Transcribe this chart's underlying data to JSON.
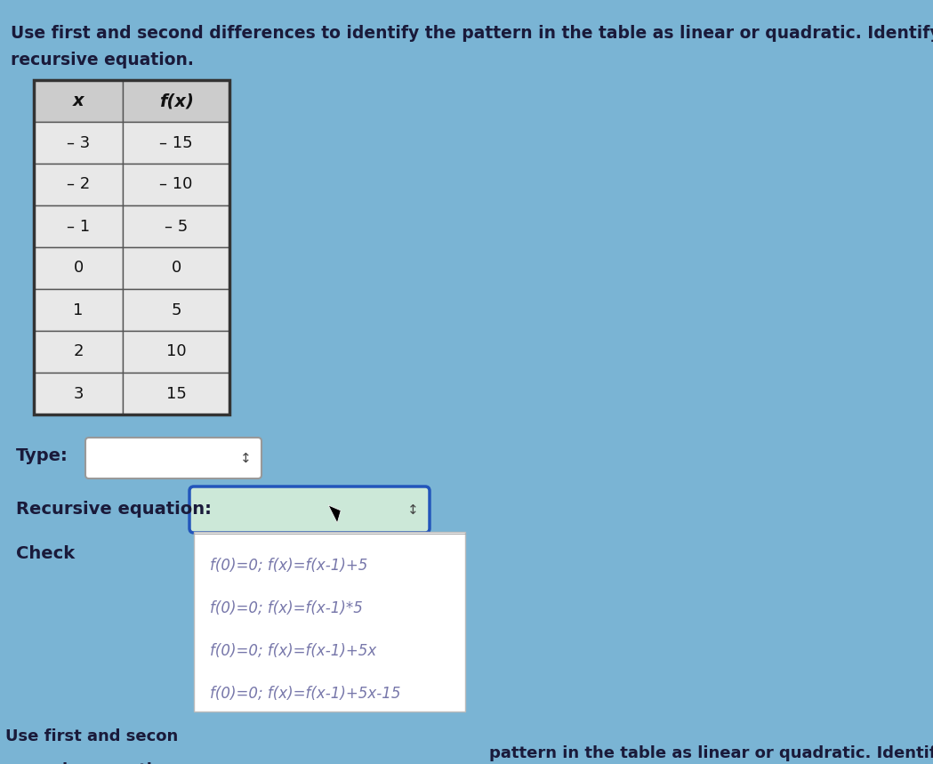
{
  "title_line1": "Use first and second differences to identify the pattern in the table as linear or quadratic. Identify the",
  "title_line2": "recursive equation.",
  "bg_color": "#7ab4d4",
  "bg_color2": "#8bbfda",
  "table_x": [
    "– 3",
    "– 2",
    "– 1",
    "0",
    "1",
    "2",
    "3"
  ],
  "table_fx": [
    "– 15",
    "– 10",
    "– 5",
    "0",
    "5",
    "10",
    "15"
  ],
  "col_headers_x": "x",
  "col_headers_fx": "f(x)",
  "type_label": "Type:",
  "recursive_label": "Recursive equation:",
  "check_label": "Check",
  "dropdown_options": [
    "f(0)=0; f(x)=f(x-1)+5",
    "f(0)=0; f(x)=f(x-1)*5",
    "f(0)=0; f(x)=f(x-1)+5x",
    "f(0)=0; f(x)=f(x-1)+5x-15"
  ],
  "bottom_text_left1": "Use first and secon",
  "bottom_text_left2": "recursive equation ",
  "bottom_text_right": "pattern in the table as linear or quadratic. Identify the",
  "option_color": "#7777aa",
  "table_cell_bg": "#e8e8e8",
  "table_header_bg": "#cccccc",
  "table_border": "#555555",
  "white": "#ffffff",
  "rec_dropdown_border": "#2255bb",
  "type_dropdown_border": "#999999",
  "text_dark": "#1a1a3a"
}
